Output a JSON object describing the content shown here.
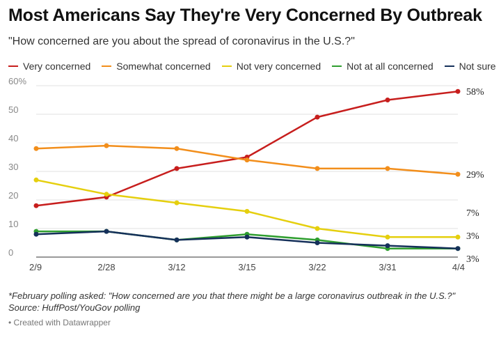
{
  "header": {
    "title": "Most Americans Say They're Very Concerned By Outbreak",
    "subtitle": "\"How concerned are you about the spread of coronavirus in the U.S.?\""
  },
  "footer": {
    "note": "*February polling asked: \"How concerned are you that there might be a large coronavirus outbreak in the U.S.?\"",
    "source": "Source: HuffPost/YouGov polling",
    "credit": "• Created with Datawrapper"
  },
  "chart_data": {
    "type": "line",
    "title": "Most Americans Say They're Very Concerned By Outbreak",
    "subtitle": "\"How concerned are you about the spread of coronavirus in the U.S.?\"",
    "xlabel": "",
    "ylabel": "",
    "categories": [
      "2/9",
      "2/28",
      "3/12",
      "3/15",
      "3/22",
      "3/31",
      "4/4"
    ],
    "ylim": [
      0,
      60
    ],
    "yticks": [
      0,
      10,
      20,
      30,
      40,
      50,
      60
    ],
    "ytick_labels": [
      "0",
      "10",
      "20",
      "30",
      "40",
      "50",
      "60%"
    ],
    "grid": true,
    "legend_position": "top",
    "series": [
      {
        "name": "Very concerned",
        "color": "#c71e1d",
        "values": [
          18,
          21,
          31,
          35,
          49,
          55,
          58
        ],
        "end_label": "58%"
      },
      {
        "name": "Somewhat concerned",
        "color": "#f28e1b",
        "values": [
          38,
          39,
          38,
          34,
          31,
          31,
          29
        ],
        "end_label": "29%"
      },
      {
        "name": "Not very concerned",
        "color": "#e5cf0e",
        "values": [
          27,
          22,
          19,
          16,
          10,
          7,
          7
        ],
        "end_label": "7%"
      },
      {
        "name": "Not at all concerned",
        "color": "#2f9e2f",
        "values": [
          9,
          9,
          6,
          8,
          6,
          3,
          3
        ],
        "end_label": "3%"
      },
      {
        "name": "Not sure",
        "color": "#15305a",
        "values": [
          8,
          9,
          6,
          7,
          5,
          4,
          3
        ],
        "end_label": "3%"
      }
    ]
  }
}
